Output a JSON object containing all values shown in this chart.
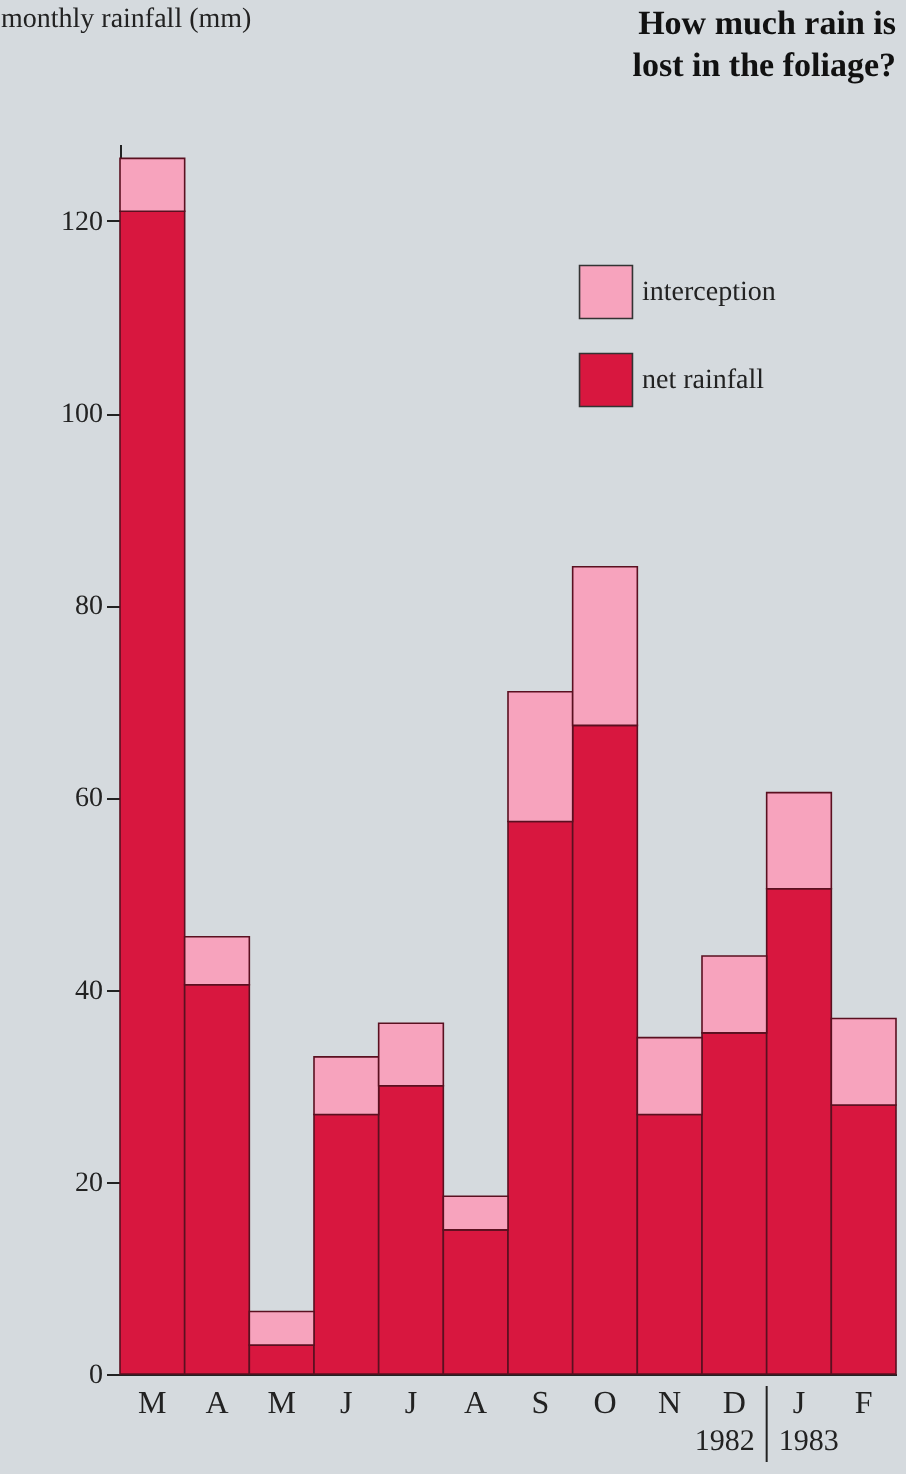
{
  "chart_data": {
    "type": "bar",
    "title": "How much rain is\nlost in the foliage?",
    "ylabel": "monthly rainfall (mm)",
    "categories": [
      "M",
      "A",
      "M",
      "J",
      "J",
      "A",
      "S",
      "O",
      "N",
      "D",
      "J",
      "F"
    ],
    "stacked": true,
    "series": [
      {
        "name": "net rainfall",
        "color": "#d8173f",
        "values": [
          121,
          40.5,
          3,
          27,
          30,
          15,
          57.5,
          67.5,
          27,
          35.5,
          50.5,
          28
        ]
      },
      {
        "name": "interception",
        "color": "#f7a3bd",
        "values": [
          5.5,
          5,
          3.5,
          6,
          6.5,
          3.5,
          13.5,
          16.5,
          8,
          8,
          10,
          9
        ]
      }
    ],
    "ylim": [
      0,
      128
    ],
    "yticks": [
      0,
      20,
      40,
      60,
      80,
      100,
      120
    ],
    "grid": false,
    "legend": "top right",
    "annotations": [
      "1982",
      "1983"
    ]
  }
}
